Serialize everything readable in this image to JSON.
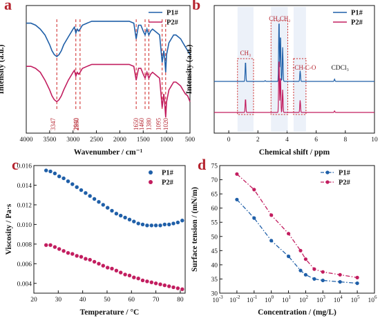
{
  "colors": {
    "p1": "#1f5fa8",
    "p2": "#c21d5f",
    "annot": "#cc2222",
    "shade": "#dce6f4"
  },
  "chart_data": [
    {
      "id": "a",
      "type": "line",
      "letter": "a",
      "xlabel": "Wavenumber / cm⁻¹",
      "ylabel": "Intensity (a.u.)",
      "xlim": [
        4000,
        500
      ],
      "x_reversed": true,
      "xticks": [
        4000,
        3500,
        3000,
        2500,
        2000,
        1500,
        1000,
        500
      ],
      "legend": [
        "P1#",
        "P2#"
      ],
      "series": [
        {
          "name": "P1#",
          "x": [
            4000,
            3900,
            3800,
            3700,
            3600,
            3500,
            3450,
            3400,
            3347,
            3300,
            3250,
            3200,
            3100,
            3000,
            2970,
            2940,
            2910,
            2880,
            2850,
            2800,
            2700,
            2600,
            2500,
            2400,
            2300,
            2200,
            2100,
            2000,
            1900,
            1800,
            1700,
            1650,
            1600,
            1550,
            1500,
            1460,
            1420,
            1380,
            1340,
            1300,
            1250,
            1200,
            1150,
            1095,
            1060,
            1040,
            1020,
            1000,
            950,
            900,
            850,
            800,
            750,
            700,
            650,
            600,
            550,
            500
          ],
          "y": [
            0.86,
            0.86,
            0.85,
            0.83,
            0.8,
            0.75,
            0.72,
            0.7,
            0.69,
            0.7,
            0.72,
            0.75,
            0.79,
            0.83,
            0.84,
            0.81,
            0.83,
            0.82,
            0.83,
            0.85,
            0.86,
            0.87,
            0.87,
            0.87,
            0.87,
            0.87,
            0.87,
            0.87,
            0.87,
            0.87,
            0.86,
            0.78,
            0.85,
            0.85,
            0.82,
            0.8,
            0.83,
            0.8,
            0.82,
            0.83,
            0.82,
            0.81,
            0.8,
            0.66,
            0.72,
            0.68,
            0.61,
            0.7,
            0.76,
            0.78,
            0.8,
            0.8,
            0.79,
            0.78,
            0.76,
            0.74,
            0.72,
            0.7
          ]
        },
        {
          "name": "P2#",
          "x": [
            4000,
            3900,
            3800,
            3700,
            3600,
            3500,
            3450,
            3400,
            3347,
            3300,
            3250,
            3200,
            3100,
            3000,
            2970,
            2940,
            2910,
            2880,
            2850,
            2800,
            2700,
            2600,
            2500,
            2400,
            2300,
            2200,
            2100,
            2000,
            1900,
            1800,
            1700,
            1650,
            1600,
            1550,
            1500,
            1460,
            1420,
            1380,
            1340,
            1300,
            1250,
            1200,
            1150,
            1095,
            1060,
            1040,
            1020,
            1000,
            950,
            900,
            850,
            800,
            750,
            700,
            650,
            600,
            550,
            500
          ],
          "y": [
            0.64,
            0.64,
            0.63,
            0.61,
            0.57,
            0.52,
            0.49,
            0.47,
            0.46,
            0.47,
            0.49,
            0.52,
            0.57,
            0.61,
            0.62,
            0.59,
            0.61,
            0.6,
            0.61,
            0.63,
            0.64,
            0.65,
            0.65,
            0.65,
            0.65,
            0.65,
            0.65,
            0.65,
            0.65,
            0.65,
            0.64,
            0.57,
            0.63,
            0.63,
            0.6,
            0.58,
            0.61,
            0.58,
            0.6,
            0.61,
            0.6,
            0.59,
            0.58,
            0.43,
            0.5,
            0.45,
            0.38,
            0.46,
            0.52,
            0.54,
            0.56,
            0.56,
            0.55,
            0.54,
            0.52,
            0.5,
            0.49,
            0.46
          ]
        }
      ],
      "peaks": [
        3347,
        2940,
        2850,
        1650,
        1460,
        1380,
        1095,
        1020
      ]
    },
    {
      "id": "b",
      "type": "line",
      "letter": "b",
      "xlabel": "Chemical shift / ppm",
      "ylabel": "Intensity (a.u.)",
      "xlim": [
        -1,
        10
      ],
      "xticks": [
        0,
        2,
        4,
        6,
        8,
        10
      ],
      "legend": [
        "P1#",
        "P2#"
      ],
      "annotations": [
        {
          "text": "CH₃",
          "ppm": 1.15
        },
        {
          "text": "CH₂CH₂",
          "ppm": 3.5
        },
        {
          "text": "-CH-C-O",
          "ppm": 4.9
        },
        {
          "text": "CDCl₃",
          "ppm": 7.26
        }
      ],
      "boxes": [
        [
          0.6,
          1.7
        ],
        [
          2.9,
          4.05
        ],
        [
          4.45,
          5.3
        ]
      ],
      "series": [
        {
          "name": "P1#",
          "peaks": [
            [
              1.15,
              0.26
            ],
            [
              2.5,
              0.01
            ],
            [
              3.45,
              0.82
            ],
            [
              3.55,
              0.62
            ],
            [
              3.7,
              0.45
            ],
            [
              4.9,
              0.14
            ],
            [
              7.26,
              0.03
            ]
          ]
        },
        {
          "name": "P2#",
          "peaks": [
            [
              1.15,
              0.18
            ],
            [
              3.45,
              0.72
            ],
            [
              3.55,
              0.48
            ],
            [
              3.7,
              0.3
            ],
            [
              4.9,
              0.16
            ],
            [
              7.26,
              0.02
            ]
          ]
        }
      ]
    },
    {
      "id": "c",
      "type": "scatter",
      "letter": "c",
      "xlabel": "Temperature / °C",
      "ylabel": "Viscosity / Pa·s",
      "xlim": [
        20,
        82
      ],
      "ylim": [
        0.003,
        0.016
      ],
      "xticks": [
        20,
        30,
        40,
        50,
        60,
        70,
        80
      ],
      "yticks": [
        0.004,
        0.006,
        0.008,
        0.01,
        0.012,
        0.014,
        0.016
      ],
      "legend": [
        "P1#",
        "P2#"
      ],
      "series": [
        {
          "name": "P1#",
          "x": [
            25,
            26.8,
            28.6,
            30.4,
            32.2,
            34,
            35.8,
            37.6,
            39.4,
            41.2,
            43,
            44.8,
            46.6,
            48.4,
            50.2,
            52,
            53.8,
            55.6,
            57.4,
            59.2,
            61,
            62.8,
            64.6,
            66.4,
            68.2,
            70,
            71.8,
            73.6,
            75.4,
            77.2,
            79,
            80.8
          ],
          "y": [
            0.0155,
            0.0154,
            0.0152,
            0.0149,
            0.0147,
            0.0144,
            0.0141,
            0.0138,
            0.0135,
            0.0132,
            0.0129,
            0.0126,
            0.0123,
            0.012,
            0.0117,
            0.0114,
            0.0111,
            0.0109,
            0.0107,
            0.0105,
            0.0103,
            0.0101,
            0.01,
            0.0099,
            0.0099,
            0.0099,
            0.0099,
            0.01,
            0.01,
            0.0101,
            0.0102,
            0.0104
          ]
        },
        {
          "name": "P2#",
          "x": [
            25,
            26.8,
            28.6,
            30.4,
            32.2,
            34,
            35.8,
            37.6,
            39.4,
            41.2,
            43,
            44.8,
            46.6,
            48.4,
            50.2,
            52,
            53.8,
            55.6,
            57.4,
            59.2,
            61,
            62.8,
            64.6,
            66.4,
            68.2,
            70,
            71.8,
            73.6,
            75.4,
            77.2,
            79,
            80.8
          ],
          "y": [
            0.0079,
            0.0079,
            0.0077,
            0.0075,
            0.0073,
            0.0071,
            0.007,
            0.0068,
            0.0067,
            0.0065,
            0.0064,
            0.0062,
            0.006,
            0.0058,
            0.0056,
            0.0055,
            0.0053,
            0.0051,
            0.0049,
            0.0048,
            0.0046,
            0.0045,
            0.0043,
            0.0042,
            0.0041,
            0.004,
            0.0039,
            0.0038,
            0.0037,
            0.0036,
            0.0035,
            0.0034
          ]
        }
      ]
    },
    {
      "id": "d",
      "type": "line",
      "letter": "d",
      "xlabel": "Concentration / (mg/L)",
      "ylabel": "Surface tension / (mN/m)",
      "xscale": "log",
      "xlim": [
        -3,
        6
      ],
      "ylim": [
        30,
        75
      ],
      "xtick_exps": [
        -3,
        -2,
        -1,
        0,
        1,
        2,
        3,
        4,
        5,
        6
      ],
      "yticks": [
        30,
        35,
        40,
        45,
        50,
        55,
        60,
        65,
        70,
        75
      ],
      "legend": [
        "P1#",
        "P2#"
      ],
      "series": [
        {
          "name": "P1#",
          "x_exp": [
            -2,
            -1,
            0,
            1,
            1.7,
            2,
            2.5,
            3,
            4,
            5
          ],
          "y": [
            63,
            56.5,
            48.5,
            43,
            38,
            36.5,
            35,
            34.5,
            34,
            33.5
          ]
        },
        {
          "name": "P2#",
          "x_exp": [
            -2,
            -1,
            0,
            1,
            1.7,
            2,
            2.5,
            3,
            4,
            5
          ],
          "y": [
            72,
            66.5,
            57.5,
            51,
            45,
            42,
            38.5,
            37.5,
            36.5,
            35.5
          ]
        }
      ]
    }
  ]
}
